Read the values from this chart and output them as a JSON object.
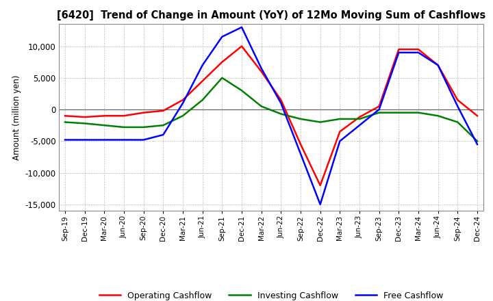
{
  "title": "[6420]  Trend of Change in Amount (YoY) of 12Mo Moving Sum of Cashflows",
  "ylabel": "Amount (million yen)",
  "ylim": [
    -16000,
    13500
  ],
  "yticks": [
    -15000,
    -10000,
    -5000,
    0,
    5000,
    10000
  ],
  "background_color": "#ffffff",
  "grid_color": "#aaaaaa",
  "dates": [
    "Sep-19",
    "Dec-19",
    "Mar-20",
    "Jun-20",
    "Sep-20",
    "Dec-20",
    "Mar-21",
    "Jun-21",
    "Sep-21",
    "Dec-21",
    "Mar-22",
    "Jun-22",
    "Sep-22",
    "Dec-22",
    "Mar-23",
    "Jun-23",
    "Sep-23",
    "Dec-23",
    "Mar-24",
    "Jun-24",
    "Sep-24",
    "Dec-24"
  ],
  "operating": [
    -1000,
    -1200,
    -1000,
    -1000,
    -500,
    -200,
    1500,
    4500,
    7500,
    10000,
    6000,
    1500,
    -5500,
    -12000,
    -3500,
    -1200,
    500,
    9500,
    9500,
    7000,
    1500,
    -1000
  ],
  "investing": [
    -2000,
    -2200,
    -2500,
    -2800,
    -2800,
    -2500,
    -1000,
    1500,
    5000,
    3000,
    500,
    -700,
    -1500,
    -2000,
    -1500,
    -1500,
    -500,
    -500,
    -500,
    -1000,
    -2000,
    -5000
  ],
  "free": [
    -4800,
    -4800,
    -4800,
    -4800,
    -4800,
    -4000,
    1000,
    7000,
    11500,
    13000,
    6500,
    1000,
    -7000,
    -15000,
    -5000,
    -2500,
    0,
    9000,
    9000,
    7000,
    500,
    -5500
  ],
  "line_colors": {
    "operating": "#ff0000",
    "investing": "#008000",
    "free": "#0000ff"
  },
  "legend_labels": [
    "Operating Cashflow",
    "Investing Cashflow",
    "Free Cashflow"
  ]
}
